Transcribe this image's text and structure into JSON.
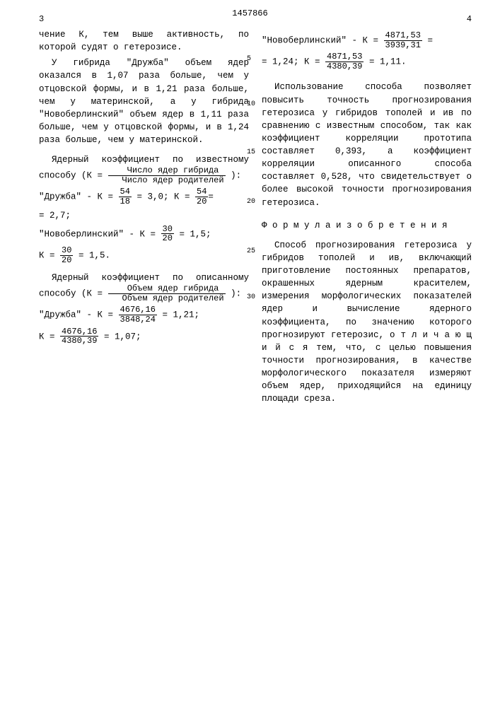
{
  "header": {
    "left_page": "3",
    "right_page": "4",
    "patent_number": "1457866"
  },
  "line_numbers": {
    "n5": "5",
    "n10": "10",
    "n15": "15",
    "n20": "20",
    "n25": "25",
    "n30": "30"
  },
  "left": {
    "p1": "чение К, тем выше активность, по которой судят о гетерозисе.",
    "p2": "У гибрида \"Дружба\" объем ядер оказался в 1,07 раза больше, чем у отцовской формы, и в 1,21 раза больше, чем у материнской, а у гибрида \"Новоберлинский\" объем ядер в 1,11 раза больше, чем у отцовской формы, и в 1,24 раза больше, чем у материнской.",
    "known_intro": "Ядерный коэффициент по известному способу (К =",
    "frac_known_num": "Число ядер гибрида",
    "frac_known_den": "Число ядер родителей",
    "close_paren": "):",
    "dr_label": "\"Дружба\" - К =",
    "dr_f1_num": "54",
    "dr_f1_den": "18",
    "dr_f1_res": "= 3,0; К =",
    "dr_f2_num": "54",
    "dr_f2_den": "20",
    "dr_f2_res": "=",
    "dr_cont": "= 2,7;",
    "nb_label": "\"Новоберлинский\" - К =",
    "nb_f1_num": "30",
    "nb_f1_den": "20",
    "nb_f1_res": "= 1,5;",
    "k_label": "К =",
    "nb_f2_num": "30",
    "nb_f2_den": "20",
    "nb_f2_res": "= 1,5.",
    "desc_intro": "Ядерный коэффициент по описанному способу (К =",
    "frac_desc_num": "Объем ядер гибрида",
    "frac_desc_den": "Объем ядер родителей",
    "dr2_label": "\"Дружба\" - К =",
    "dr2_f1_num": "4676,16",
    "dr2_f1_den": "3848,24",
    "dr2_f1_res": "= 1,21;",
    "dr2_f2_num": "4676,16",
    "dr2_f2_den": "4380,39",
    "dr2_f2_res": "= 1,07;"
  },
  "right": {
    "nb2_label": "\"Новоберлинский\" - К =",
    "nb2_f1_num": "4871,53",
    "nb2_f1_den": "3939,31",
    "nb2_f1_res": "=",
    "nb2_cont": "= 1,24; К =",
    "nb2_f2_num": "4871,53",
    "nb2_f2_den": "4380,39",
    "nb2_f2_res": "= 1,11.",
    "p3": "Использование способа позволяет повысить точность прогнозирования гетерозиса у гибридов тополей и ив по сравнению с известным способом, так как коэффициент корреляции прототипа составляет 0,393, а коэффициент корреляции описанного способа составляет 0,528, что свидетельствует о более высокой точности прогнозирования гетерозиса.",
    "formula_title": "Ф о р м у л а  и з о б р е т е н и я",
    "claim": "Способ прогнозирования гетерозиса у гибридов тополей и ив, включающий приготовление постоянных препаратов, окрашенных ядерным красителем, измерения морфологических показателей ядер и вычисление ядерного коэффициента, по значению которого прогнозируют гетерозис, о т л и ч а ю щ и й с я  тем, что, с целью повышения точности прогнозирования, в качестве морфологического показателя измеряют объем ядер, приходящийся на единицу площади среза."
  }
}
